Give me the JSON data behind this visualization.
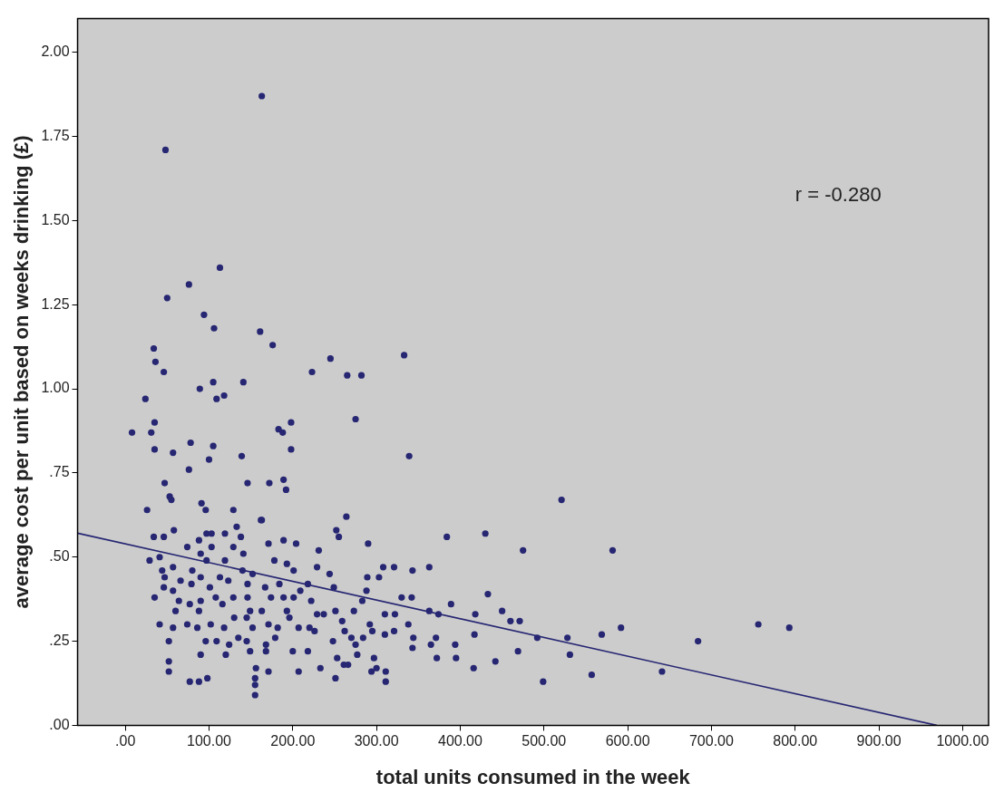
{
  "chart_data": {
    "type": "scatter",
    "xlabel": "total units consumed in the week",
    "ylabel": "average cost per unit based on weeks drinking (£)",
    "xlim": [
      -57,
      1031
    ],
    "ylim": [
      0,
      2.1
    ],
    "xticks": [
      {
        "value": 0,
        "label": ".00"
      },
      {
        "value": 100,
        "label": "100.00"
      },
      {
        "value": 200,
        "label": "200.00"
      },
      {
        "value": 300,
        "label": "300.00"
      },
      {
        "value": 400,
        "label": "400.00"
      },
      {
        "value": 500,
        "label": "500.00"
      },
      {
        "value": 600,
        "label": "600.00"
      },
      {
        "value": 700,
        "label": "700.00"
      },
      {
        "value": 800,
        "label": "800.00"
      },
      {
        "value": 900,
        "label": "900.00"
      },
      {
        "value": 1000,
        "label": "1000.00"
      }
    ],
    "yticks": [
      {
        "value": 0,
        "label": ".00"
      },
      {
        "value": 0.25,
        "label": ".25"
      },
      {
        "value": 0.5,
        "label": ".50"
      },
      {
        "value": 0.75,
        "label": ".75"
      },
      {
        "value": 1,
        "label": "1.00"
      },
      {
        "value": 1.25,
        "label": "1.25"
      },
      {
        "value": 1.5,
        "label": "1.50"
      },
      {
        "value": 1.75,
        "label": "1.75"
      },
      {
        "value": 2,
        "label": "2.00"
      }
    ],
    "grid": false,
    "legend": false,
    "annotations": [
      "r = -0.280"
    ],
    "series": [
      {
        "marker": "circle",
        "color": "#262673",
        "x": [
          163,
          48,
          76,
          113,
          50,
          94,
          106,
          161,
          176,
          34,
          36,
          333,
          245,
          46,
          223,
          265,
          282,
          105,
          141,
          118,
          109,
          24,
          89,
          8,
          31,
          35,
          275,
          198,
          183,
          188,
          78,
          105,
          35,
          198,
          57,
          139,
          339,
          100,
          76,
          189,
          47,
          146,
          172,
          192,
          53,
          55,
          521,
          91,
          96,
          26,
          129,
          264,
          162,
          58,
          252,
          255,
          34,
          46,
          384,
          430,
          475,
          582,
          29,
          41,
          44,
          47,
          35,
          46,
          57,
          57,
          41,
          52,
          52,
          52,
          64,
          60,
          57,
          66,
          74,
          77,
          77,
          88,
          98,
          74,
          80,
          79,
          88,
          90,
          90,
          90,
          88,
          86,
          90,
          96,
          97,
          103,
          103,
          97,
          101,
          102,
          108,
          113,
          116,
          109,
          118,
          119,
          119,
          123,
          124,
          120,
          129,
          129,
          130,
          133,
          138,
          135,
          140,
          141,
          145,
          145,
          149,
          146,
          146,
          149,
          152,
          152,
          156,
          155,
          155,
          155,
          163,
          163,
          167,
          168,
          171,
          168,
          171,
          174,
          171,
          178,
          182,
          179,
          184,
          189,
          189,
          193,
          193,
          196,
          200,
          201,
          204,
          201,
          207,
          207,
          209,
          218,
          218,
          220,
          222,
          229,
          231,
          233,
          229,
          226,
          237,
          244,
          249,
          248,
          251,
          251,
          253,
          259,
          261,
          262,
          266,
          270,
          273,
          275,
          277,
          283,
          284,
          288,
          289,
          290,
          292,
          294,
          297,
          295,
          300,
          303,
          308,
          310,
          311,
          311,
          310,
          321,
          322,
          321,
          338,
          330,
          342,
          343,
          344,
          343,
          363,
          363,
          365,
          371,
          372,
          374,
          433,
          389,
          450,
          460,
          471,
          492,
          528,
          569,
          592,
          684,
          756,
          793,
          641,
          557,
          499,
          531,
          469,
          416,
          442,
          417,
          418,
          394,
          395
        ],
        "values": [
          1.87,
          1.71,
          1.31,
          1.36,
          1.27,
          1.22,
          1.18,
          1.17,
          1.13,
          1.12,
          1.08,
          1.1,
          1.09,
          1.05,
          1.05,
          1.04,
          1.04,
          1.02,
          1.02,
          0.98,
          0.97,
          0.97,
          1,
          0.87,
          0.87,
          0.9,
          0.91,
          0.9,
          0.88,
          0.87,
          0.84,
          0.83,
          0.82,
          0.82,
          0.81,
          0.8,
          0.8,
          0.79,
          0.76,
          0.73,
          0.72,
          0.72,
          0.72,
          0.7,
          0.68,
          0.67,
          0.67,
          0.66,
          0.64,
          0.64,
          0.64,
          0.62,
          0.61,
          0.58,
          0.58,
          0.56,
          0.56,
          0.56,
          0.56,
          0.57,
          0.52,
          0.52,
          0.49,
          0.5,
          0.46,
          0.44,
          0.38,
          0.41,
          0.4,
          0.47,
          0.3,
          0.25,
          0.19,
          0.16,
          0.37,
          0.34,
          0.29,
          0.43,
          0.53,
          0.36,
          0.13,
          0.13,
          0.14,
          0.3,
          0.46,
          0.42,
          0.55,
          0.51,
          0.44,
          0.37,
          0.34,
          0.29,
          0.21,
          0.25,
          0.57,
          0.57,
          0.53,
          0.49,
          0.41,
          0.3,
          0.38,
          0.44,
          0.36,
          0.25,
          0.29,
          0.57,
          0.49,
          0.43,
          0.24,
          0.21,
          0.53,
          0.38,
          0.32,
          0.59,
          0.56,
          0.26,
          0.46,
          0.51,
          0.32,
          0.25,
          0.22,
          0.42,
          0.38,
          0.34,
          0.45,
          0.29,
          0.17,
          0.14,
          0.12,
          0.09,
          0.61,
          0.34,
          0.41,
          0.24,
          0.16,
          0.22,
          0.54,
          0.38,
          0.3,
          0.49,
          0.29,
          0.26,
          0.42,
          0.55,
          0.38,
          0.34,
          0.48,
          0.32,
          0.22,
          0.46,
          0.54,
          0.38,
          0.29,
          0.16,
          0.4,
          0.22,
          0.42,
          0.29,
          0.37,
          0.47,
          0.52,
          0.17,
          0.33,
          0.28,
          0.33,
          0.45,
          0.41,
          0.25,
          0.34,
          0.14,
          0.2,
          0.31,
          0.18,
          0.28,
          0.18,
          0.26,
          0.34,
          0.24,
          0.21,
          0.37,
          0.26,
          0.4,
          0.44,
          0.54,
          0.3,
          0.16,
          0.2,
          0.28,
          0.17,
          0.44,
          0.47,
          0.33,
          0.13,
          0.16,
          0.27,
          0.47,
          0.33,
          0.28,
          0.3,
          0.38,
          0.38,
          0.46,
          0.26,
          0.23,
          0.47,
          0.34,
          0.24,
          0.26,
          0.2,
          0.33,
          0.39,
          0.36,
          0.34,
          0.31,
          0.31,
          0.26,
          0.26,
          0.27,
          0.29,
          0.25,
          0.3,
          0.29,
          0.16,
          0.15,
          0.13,
          0.21,
          0.22,
          0.17,
          0.19,
          0.27,
          0.33,
          0.24,
          0.2
        ]
      },
      {
        "type": "line",
        "marker": "none",
        "color": "#262673",
        "x": [
          -57,
          969
        ],
        "values": [
          0.571,
          0
        ]
      }
    ]
  }
}
